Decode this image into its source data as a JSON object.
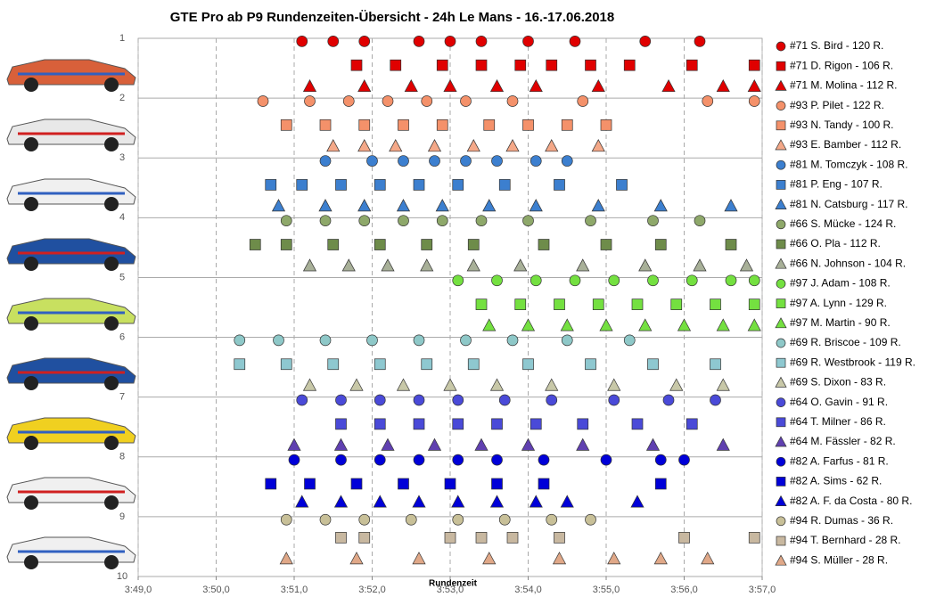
{
  "chart_data": {
    "type": "scatter",
    "title": "GTE Pro ab P9 Rundenzeiten-Übersicht  - 24h Le Mans  - 16.-17.06.2018",
    "x_label": "Rundenzeit",
    "xlim": [
      229,
      237
    ],
    "xticks": [
      {
        "value": 229,
        "label": "3:49,0"
      },
      {
        "value": 230,
        "label": "3:50,0"
      },
      {
        "value": 231,
        "label": "3:51,0"
      },
      {
        "value": 232,
        "label": "3:52,0"
      },
      {
        "value": 233,
        "label": "3:53,0"
      },
      {
        "value": 234,
        "label": "3:54,0"
      },
      {
        "value": 235,
        "label": "3:55,0"
      },
      {
        "value": 236,
        "label": "3:56,0"
      },
      {
        "value": 237,
        "label": "3:57,0"
      }
    ],
    "ylim": [
      10,
      1
    ],
    "yticks": [
      1,
      2,
      3,
      4,
      5,
      6,
      7,
      8,
      9,
      10
    ],
    "grid": true,
    "legend": "right",
    "series": [
      {
        "name": "#71 S. Bird - 120 R.",
        "color": "#e00000",
        "marker": "circle",
        "x": [
          231.1,
          231.5,
          231.9,
          232.6,
          233.0,
          233.4,
          234.0,
          234.6,
          235.5,
          236.2
        ],
        "y": [
          1.05,
          1.05,
          1.05,
          1.05,
          1.05,
          1.05,
          1.05,
          1.05,
          1.05,
          1.05
        ]
      },
      {
        "name": "#71 D. Rigon - 106 R.",
        "color": "#e00000",
        "marker": "square",
        "x": [
          231.8,
          232.3,
          232.9,
          233.4,
          233.9,
          234.3,
          234.8,
          235.3,
          236.1,
          236.9
        ],
        "y": [
          1.45,
          1.45,
          1.45,
          1.45,
          1.45,
          1.45,
          1.45,
          1.45,
          1.45,
          1.45
        ]
      },
      {
        "name": "#71 M. Molina - 112 R.",
        "color": "#e00000",
        "marker": "triangle",
        "x": [
          231.2,
          231.9,
          232.5,
          233.0,
          233.6,
          234.1,
          234.9,
          235.8,
          236.5,
          236.9
        ],
        "y": [
          1.8,
          1.8,
          1.8,
          1.8,
          1.8,
          1.8,
          1.8,
          1.8,
          1.8,
          1.8
        ]
      },
      {
        "name": "#93 P. Pilet - 122 R.",
        "color": "#f4916a",
        "marker": "circle",
        "x": [
          230.6,
          231.2,
          231.7,
          232.2,
          232.7,
          233.2,
          233.8,
          234.7,
          236.3,
          236.9
        ],
        "y": [
          2.05,
          2.05,
          2.05,
          2.05,
          2.05,
          2.05,
          2.05,
          2.05,
          2.05,
          2.05
        ]
      },
      {
        "name": "#93 N. Tandy - 100 R.",
        "color": "#f4916a",
        "marker": "square",
        "x": [
          230.9,
          231.4,
          231.9,
          232.4,
          232.9,
          233.5,
          234.0,
          234.5,
          235.0
        ],
        "y": [
          2.45,
          2.45,
          2.45,
          2.45,
          2.45,
          2.45,
          2.45,
          2.45,
          2.45
        ]
      },
      {
        "name": "#93 E. Bamber - 112 R.",
        "color": "#f4a888",
        "marker": "triangle",
        "x": [
          231.5,
          231.9,
          232.3,
          232.8,
          233.3,
          233.8,
          234.3,
          234.9
        ],
        "y": [
          2.8,
          2.8,
          2.8,
          2.8,
          2.8,
          2.8,
          2.8,
          2.8
        ]
      },
      {
        "name": "#81 M. Tomczyk - 108 R.",
        "color": "#3c7fcf",
        "marker": "circle",
        "x": [
          231.4,
          232.0,
          232.4,
          232.8,
          233.2,
          233.6,
          234.1,
          234.5
        ],
        "y": [
          3.05,
          3.05,
          3.05,
          3.05,
          3.05,
          3.05,
          3.05,
          3.05
        ]
      },
      {
        "name": "#81 P. Eng - 107 R.",
        "color": "#3c7fcf",
        "marker": "square",
        "x": [
          230.7,
          231.1,
          231.6,
          232.1,
          232.6,
          233.1,
          233.7,
          234.4,
          235.2
        ],
        "y": [
          3.45,
          3.45,
          3.45,
          3.45,
          3.45,
          3.45,
          3.45,
          3.45,
          3.45
        ]
      },
      {
        "name": "#81 N. Catsburg - 117 R.",
        "color": "#3c7fcf",
        "marker": "triangle",
        "x": [
          230.8,
          231.4,
          231.9,
          232.4,
          232.9,
          233.5,
          234.1,
          234.9,
          235.7,
          236.6
        ],
        "y": [
          3.8,
          3.8,
          3.8,
          3.8,
          3.8,
          3.8,
          3.8,
          3.8,
          3.8,
          3.8
        ]
      },
      {
        "name": "#66 S. Mücke - 124 R.",
        "color": "#8ea86a",
        "marker": "circle",
        "x": [
          230.9,
          231.4,
          231.9,
          232.4,
          232.9,
          233.4,
          234.0,
          234.8,
          235.6,
          236.2
        ],
        "y": [
          4.05,
          4.05,
          4.05,
          4.05,
          4.05,
          4.05,
          4.05,
          4.05,
          4.05,
          4.05
        ]
      },
      {
        "name": "#66 O. Pla - 112 R.",
        "color": "#6e8c4a",
        "marker": "square",
        "x": [
          230.5,
          230.9,
          231.5,
          232.1,
          232.7,
          233.3,
          234.2,
          235.0,
          235.7,
          236.6
        ],
        "y": [
          4.45,
          4.45,
          4.45,
          4.45,
          4.45,
          4.45,
          4.45,
          4.45,
          4.45,
          4.45
        ]
      },
      {
        "name": "#66 N. Johnson - 104 R.",
        "color": "#a8b098",
        "marker": "triangle",
        "x": [
          231.2,
          231.7,
          232.2,
          232.7,
          233.3,
          233.9,
          234.7,
          235.5,
          236.2,
          236.8
        ],
        "y": [
          4.8,
          4.8,
          4.8,
          4.8,
          4.8,
          4.8,
          4.8,
          4.8,
          4.8,
          4.8
        ]
      },
      {
        "name": "#97 J. Adam - 108 R.",
        "color": "#74e040",
        "marker": "circle",
        "x": [
          233.1,
          233.6,
          234.1,
          234.6,
          235.1,
          235.6,
          236.1,
          236.6,
          236.9
        ],
        "y": [
          5.05,
          5.05,
          5.05,
          5.05,
          5.05,
          5.05,
          5.05,
          5.05,
          5.05
        ]
      },
      {
        "name": "#97 A. Lynn - 129 R.",
        "color": "#74e040",
        "marker": "square",
        "x": [
          233.4,
          233.9,
          234.4,
          234.9,
          235.4,
          235.9,
          236.4,
          236.9
        ],
        "y": [
          5.45,
          5.45,
          5.45,
          5.45,
          5.45,
          5.45,
          5.45,
          5.45
        ]
      },
      {
        "name": "#97 M. Martin - 90 R.",
        "color": "#74e040",
        "marker": "triangle",
        "x": [
          233.5,
          234.0,
          234.5,
          235.0,
          235.5,
          236.0,
          236.5,
          236.9
        ],
        "y": [
          5.8,
          5.8,
          5.8,
          5.8,
          5.8,
          5.8,
          5.8,
          5.8
        ]
      },
      {
        "name": "#69 R. Briscoe - 109 R.",
        "color": "#8ec8c8",
        "marker": "circle",
        "x": [
          230.3,
          230.8,
          231.4,
          232.0,
          232.6,
          233.2,
          233.8,
          234.5,
          235.3
        ],
        "y": [
          6.05,
          6.05,
          6.05,
          6.05,
          6.05,
          6.05,
          6.05,
          6.05,
          6.05
        ]
      },
      {
        "name": "#69 R. Westbrook - 119 R.",
        "color": "#8ec8d0",
        "marker": "square",
        "x": [
          230.3,
          230.9,
          231.5,
          232.1,
          232.7,
          233.3,
          234.0,
          234.8,
          235.6,
          236.4
        ],
        "y": [
          6.45,
          6.45,
          6.45,
          6.45,
          6.45,
          6.45,
          6.45,
          6.45,
          6.45,
          6.45
        ]
      },
      {
        "name": "#69 S. Dixon - 83 R.",
        "color": "#c8c8a8",
        "marker": "triangle",
        "x": [
          231.2,
          231.8,
          232.4,
          233.0,
          233.6,
          234.3,
          235.1,
          235.9,
          236.5
        ],
        "y": [
          6.8,
          6.8,
          6.8,
          6.8,
          6.8,
          6.8,
          6.8,
          6.8,
          6.8
        ]
      },
      {
        "name": "#64 O. Gavin - 91 R.",
        "color": "#4a4ad8",
        "marker": "circle",
        "x": [
          231.1,
          231.6,
          232.1,
          232.6,
          233.1,
          233.7,
          234.3,
          235.1,
          235.8,
          236.4
        ],
        "y": [
          7.05,
          7.05,
          7.05,
          7.05,
          7.05,
          7.05,
          7.05,
          7.05,
          7.05,
          7.05
        ]
      },
      {
        "name": "#64 T. Milner - 86 R.",
        "color": "#4a4ad8",
        "marker": "square",
        "x": [
          231.6,
          232.1,
          232.6,
          233.1,
          233.6,
          234.1,
          234.7,
          235.4,
          236.1
        ],
        "y": [
          7.45,
          7.45,
          7.45,
          7.45,
          7.45,
          7.45,
          7.45,
          7.45,
          7.45
        ]
      },
      {
        "name": "#64 M. Fässler - 82 R.",
        "color": "#6040b0",
        "marker": "triangle",
        "x": [
          231.0,
          231.6,
          232.2,
          232.8,
          233.4,
          234.0,
          234.7,
          235.6,
          236.5
        ],
        "y": [
          7.8,
          7.8,
          7.8,
          7.8,
          7.8,
          7.8,
          7.8,
          7.8,
          7.8
        ]
      },
      {
        "name": "#82 A. Farfus - 81 R.",
        "color": "#0000d8",
        "marker": "circle",
        "x": [
          231.0,
          231.6,
          232.1,
          232.6,
          233.1,
          233.6,
          234.2,
          235.0,
          235.7,
          236.0
        ],
        "y": [
          8.05,
          8.05,
          8.05,
          8.05,
          8.05,
          8.05,
          8.05,
          8.05,
          8.05,
          8.05
        ]
      },
      {
        "name": "#82 A. Sims - 62 R.",
        "color": "#0000d8",
        "marker": "square",
        "x": [
          230.7,
          231.2,
          231.8,
          232.4,
          233.0,
          233.6,
          234.2,
          235.7
        ],
        "y": [
          8.45,
          8.45,
          8.45,
          8.45,
          8.45,
          8.45,
          8.45,
          8.45
        ]
      },
      {
        "name": "#82 A. F. da Costa - 80 R.",
        "color": "#0000d8",
        "marker": "triangle",
        "x": [
          231.1,
          231.6,
          232.1,
          232.6,
          233.1,
          233.6,
          234.1,
          234.5,
          235.4
        ],
        "y": [
          8.75,
          8.75,
          8.75,
          8.75,
          8.75,
          8.75,
          8.75,
          8.75,
          8.75
        ]
      },
      {
        "name": "#94 R. Dumas - 36 R.",
        "color": "#c8c098",
        "marker": "circle",
        "x": [
          230.9,
          231.4,
          231.9,
          232.5,
          233.1,
          233.7,
          234.3,
          234.8
        ],
        "y": [
          9.05,
          9.05,
          9.05,
          9.05,
          9.05,
          9.05,
          9.05,
          9.05
        ]
      },
      {
        "name": "#94 T. Bernhard - 28 R.",
        "color": "#c8b8a0",
        "marker": "square",
        "x": [
          231.6,
          231.9,
          233.0,
          233.4,
          233.8,
          234.4,
          236.0,
          236.9
        ],
        "y": [
          9.35,
          9.35,
          9.35,
          9.35,
          9.35,
          9.35,
          9.35,
          9.35
        ]
      },
      {
        "name": "#94 S. Müller - 28 R.",
        "color": "#e0a888",
        "marker": "triangle",
        "x": [
          230.9,
          231.8,
          232.6,
          233.5,
          234.4,
          235.1,
          235.7,
          236.3
        ],
        "y": [
          9.7,
          9.7,
          9.7,
          9.7,
          9.7,
          9.7,
          9.7,
          9.7
        ]
      }
    ]
  }
}
